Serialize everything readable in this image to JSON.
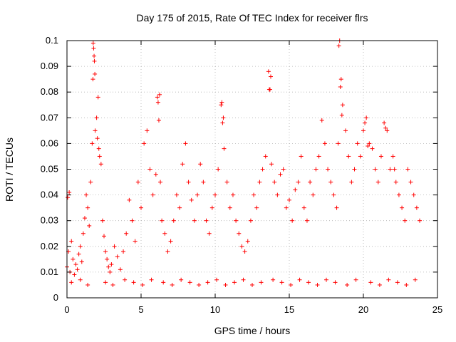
{
  "chart_data": {
    "type": "scatter",
    "title": "Day 175 of 2015, Rate Of TEC Index for receiver flrs",
    "xlabel": "GPS time / hours",
    "ylabel": "ROTI / TECUs",
    "xlim": [
      0,
      25
    ],
    "ylim": [
      0,
      0.1
    ],
    "x_ticks": [
      "0",
      "5",
      "10",
      "15",
      "20",
      "25"
    ],
    "y_ticks": [
      "0",
      "0.01",
      "0.02",
      "0.03",
      "0.04",
      "0.05",
      "0.06",
      "0.07",
      "0.08",
      "0.09",
      "0.1"
    ],
    "grid": true,
    "marker": "plus",
    "color": "#ff0000",
    "series": [
      {
        "x": [
          0.0,
          0.1,
          0.2,
          0.3,
          0.4,
          0.5,
          0.6,
          0.7,
          0.8,
          0.9,
          1.0,
          1.1,
          1.2,
          1.3,
          1.4,
          1.5,
          1.6,
          1.7,
          1.75,
          1.8,
          1.85,
          1.9,
          2.0,
          2.1,
          2.2,
          2.3,
          2.4,
          2.5,
          2.6,
          2.7,
          2.8,
          2.9,
          3.0,
          3.2,
          3.4,
          3.6,
          3.8,
          4.0,
          4.2,
          4.4,
          4.6,
          4.8,
          5.0,
          5.2,
          5.4,
          5.6,
          5.8,
          6.0,
          6.1,
          6.2,
          6.3,
          6.4,
          6.6,
          6.8,
          7.0,
          7.2,
          7.4,
          7.6,
          7.8,
          8.0,
          8.2,
          8.4,
          8.6,
          8.8,
          9.0,
          9.2,
          9.4,
          9.6,
          9.8,
          10.0,
          10.2,
          10.4,
          10.5,
          10.6,
          10.8,
          11.0,
          11.2,
          11.4,
          11.6,
          11.8,
          12.0,
          12.2,
          12.4,
          12.6,
          12.8,
          13.0,
          13.2,
          13.4,
          13.6,
          13.7,
          13.8,
          14.0,
          14.2,
          14.4,
          14.6,
          14.8,
          15.0,
          15.2,
          15.4,
          15.6,
          15.8,
          16.0,
          16.2,
          16.4,
          16.6,
          16.8,
          17.0,
          17.2,
          17.4,
          17.6,
          17.8,
          18.0,
          18.2,
          18.3,
          18.4,
          18.5,
          18.6,
          18.8,
          19.0,
          19.2,
          19.4,
          19.6,
          19.8,
          20.0,
          20.2,
          20.4,
          20.6,
          20.8,
          21.0,
          21.2,
          21.4,
          21.6,
          21.8,
          22.0,
          22.2,
          22.4,
          22.6,
          22.8,
          23.0,
          23.2,
          23.4,
          23.6,
          23.8,
          0.05,
          0.15,
          1.77,
          1.83,
          1.88,
          2.05,
          2.15,
          6.15,
          6.25,
          10.45,
          10.55,
          13.65,
          13.75,
          18.35,
          18.45,
          18.55,
          20.1,
          20.3,
          21.5,
          22.1,
          0.3,
          0.9,
          1.4,
          2.6,
          3.1,
          3.9,
          4.5,
          5.1,
          5.7,
          6.5,
          7.1,
          7.7,
          8.3,
          8.9,
          9.5,
          10.1,
          10.7,
          11.3,
          11.9,
          12.5,
          13.1,
          13.9,
          14.5,
          15.1,
          15.7,
          16.3,
          16.9,
          17.5,
          18.1,
          18.9,
          19.5,
          20.5,
          21.1,
          21.7,
          22.3,
          22.9,
          23.5
        ],
        "y": [
          0.012,
          0.018,
          0.01,
          0.022,
          0.015,
          0.009,
          0.013,
          0.011,
          0.017,
          0.02,
          0.014,
          0.025,
          0.031,
          0.04,
          0.035,
          0.028,
          0.045,
          0.06,
          0.085,
          0.097,
          0.092,
          0.065,
          0.07,
          0.078,
          0.055,
          0.052,
          0.03,
          0.024,
          0.018,
          0.015,
          0.012,
          0.01,
          0.013,
          0.02,
          0.016,
          0.011,
          0.018,
          0.025,
          0.038,
          0.03,
          0.022,
          0.045,
          0.035,
          0.06,
          0.065,
          0.05,
          0.04,
          0.048,
          0.078,
          0.069,
          0.045,
          0.03,
          0.025,
          0.018,
          0.022,
          0.03,
          0.04,
          0.035,
          0.052,
          0.06,
          0.045,
          0.038,
          0.03,
          0.04,
          0.052,
          0.045,
          0.03,
          0.025,
          0.035,
          0.04,
          0.05,
          0.075,
          0.068,
          0.058,
          0.045,
          0.035,
          0.04,
          0.03,
          0.025,
          0.02,
          0.018,
          0.022,
          0.03,
          0.04,
          0.035,
          0.045,
          0.05,
          0.055,
          0.088,
          0.081,
          0.052,
          0.045,
          0.04,
          0.048,
          0.05,
          0.035,
          0.038,
          0.03,
          0.042,
          0.045,
          0.055,
          0.035,
          0.03,
          0.045,
          0.04,
          0.05,
          0.055,
          0.069,
          0.06,
          0.05,
          0.045,
          0.04,
          0.035,
          0.06,
          0.1,
          0.085,
          0.075,
          0.065,
          0.055,
          0.045,
          0.05,
          0.06,
          0.055,
          0.065,
          0.07,
          0.06,
          0.058,
          0.05,
          0.045,
          0.055,
          0.068,
          0.065,
          0.05,
          0.055,
          0.045,
          0.04,
          0.035,
          0.03,
          0.05,
          0.045,
          0.04,
          0.035,
          0.03,
          0.039,
          0.041,
          0.099,
          0.094,
          0.087,
          0.062,
          0.058,
          0.076,
          0.079,
          0.076,
          0.07,
          0.081,
          0.086,
          0.098,
          0.082,
          0.071,
          0.068,
          0.059,
          0.066,
          0.05,
          0.006,
          0.007,
          0.005,
          0.006,
          0.005,
          0.007,
          0.006,
          0.005,
          0.007,
          0.006,
          0.005,
          0.007,
          0.006,
          0.005,
          0.006,
          0.007,
          0.005,
          0.006,
          0.007,
          0.005,
          0.006,
          0.007,
          0.006,
          0.005,
          0.007,
          0.006,
          0.005,
          0.007,
          0.006,
          0.005,
          0.007,
          0.006,
          0.005,
          0.007,
          0.006,
          0.005,
          0.007
        ]
      }
    ]
  }
}
